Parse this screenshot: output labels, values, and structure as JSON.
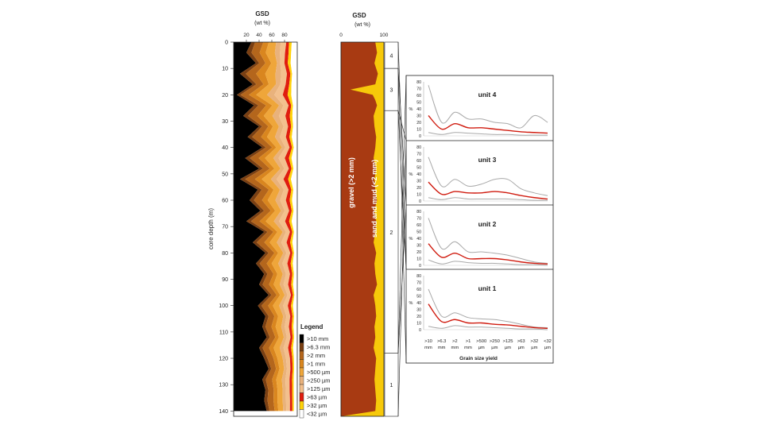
{
  "chart_data": [
    {
      "type": "area",
      "title": "GSD",
      "subtitle": "(wt %)",
      "ylabel": "core depth (m)",
      "ylim": [
        0,
        142
      ],
      "y_ticks": [
        0,
        10,
        20,
        30,
        40,
        50,
        60,
        70,
        80,
        90,
        100,
        110,
        120,
        130,
        140
      ],
      "x_ticks": [
        20,
        40,
        60,
        80
      ],
      "xlim": [
        0,
        100
      ],
      "legend_title": "Legend",
      "legend_position": "bottom-right",
      "classes": [
        {
          "label": ">10 mm",
          "color": "#000000"
        },
        {
          "label": ">6.3 mm",
          "color": "#7a3f12"
        },
        {
          "label": ">2 mm",
          "color": "#b4661c"
        },
        {
          "label": ">1 mm",
          "color": "#d9861f"
        },
        {
          "label": ">500 µm",
          "color": "#efa63a"
        },
        {
          "label": ">250 µm",
          "color": "#e9b27c"
        },
        {
          "label": ">125 µm",
          "color": "#f3c08d"
        },
        {
          "label": ">63 µm",
          "color": "#e01d0f"
        },
        {
          "label": ">32 µm",
          "color": "#ffd20a"
        },
        {
          "label": "<32 µm",
          "color": "#ffffff"
        }
      ],
      "depth": [
        0,
        4,
        8,
        12,
        16,
        20,
        24,
        28,
        32,
        36,
        40,
        44,
        48,
        52,
        56,
        60,
        64,
        68,
        72,
        76,
        80,
        84,
        88,
        92,
        96,
        100,
        104,
        108,
        112,
        116,
        120,
        124,
        128,
        132,
        136,
        140
      ],
      "black_fraction_pct": [
        28,
        20,
        35,
        10,
        30,
        5,
        32,
        15,
        40,
        22,
        45,
        18,
        40,
        10,
        38,
        25,
        42,
        20,
        48,
        30,
        50,
        35,
        48,
        40,
        55,
        38,
        50,
        45,
        52,
        40,
        48,
        55,
        45,
        50,
        48,
        52
      ],
      "remaining_pct": [
        [
          8,
          18,
          12,
          16,
          10,
          12,
          6,
          6,
          3,
          9
        ],
        [
          10,
          16,
          12,
          18,
          10,
          10,
          7,
          5,
          3,
          9
        ],
        [
          8,
          15,
          14,
          14,
          8,
          10,
          8,
          7,
          4,
          12
        ],
        [
          10,
          18,
          16,
          18,
          10,
          10,
          6,
          3,
          2,
          7
        ],
        [
          8,
          16,
          12,
          16,
          10,
          12,
          8,
          5,
          3,
          10
        ],
        [
          6,
          14,
          12,
          18,
          12,
          14,
          8,
          6,
          4,
          6
        ],
        [
          10,
          18,
          14,
          16,
          10,
          12,
          6,
          4,
          2,
          8
        ],
        [
          9,
          17,
          12,
          16,
          12,
          12,
          8,
          5,
          3,
          6
        ],
        [
          8,
          16,
          12,
          16,
          12,
          12,
          8,
          5,
          3,
          8
        ],
        [
          9,
          18,
          12,
          16,
          10,
          12,
          7,
          5,
          3,
          8
        ],
        [
          10,
          18,
          12,
          16,
          10,
          12,
          7,
          5,
          3,
          7
        ],
        [
          9,
          17,
          12,
          16,
          10,
          12,
          8,
          5,
          3,
          8
        ],
        [
          10,
          18,
          12,
          16,
          10,
          12,
          7,
          5,
          3,
          7
        ],
        [
          9,
          17,
          12,
          16,
          10,
          12,
          8,
          5,
          3,
          8
        ],
        [
          10,
          18,
          12,
          16,
          10,
          12,
          7,
          5,
          3,
          7
        ],
        [
          9,
          17,
          12,
          16,
          10,
          12,
          8,
          5,
          3,
          8
        ],
        [
          10,
          18,
          12,
          16,
          10,
          12,
          7,
          5,
          3,
          7
        ],
        [
          9,
          17,
          12,
          16,
          10,
          12,
          8,
          5,
          3,
          8
        ],
        [
          10,
          18,
          12,
          16,
          10,
          12,
          7,
          5,
          3,
          7
        ],
        [
          9,
          17,
          12,
          16,
          10,
          12,
          8,
          5,
          3,
          8
        ],
        [
          10,
          18,
          12,
          16,
          10,
          12,
          7,
          5,
          3,
          7
        ],
        [
          9,
          17,
          12,
          16,
          10,
          12,
          8,
          5,
          3,
          8
        ],
        [
          10,
          18,
          12,
          16,
          10,
          12,
          7,
          5,
          3,
          7
        ],
        [
          9,
          17,
          12,
          16,
          10,
          12,
          8,
          5,
          3,
          8
        ],
        [
          10,
          18,
          12,
          16,
          10,
          12,
          7,
          5,
          3,
          7
        ],
        [
          9,
          17,
          12,
          16,
          10,
          12,
          8,
          5,
          3,
          8
        ],
        [
          10,
          18,
          12,
          16,
          10,
          12,
          7,
          5,
          3,
          7
        ],
        [
          9,
          17,
          12,
          16,
          10,
          12,
          8,
          5,
          3,
          8
        ],
        [
          10,
          18,
          12,
          16,
          10,
          12,
          7,
          5,
          3,
          7
        ],
        [
          9,
          17,
          12,
          16,
          10,
          12,
          8,
          5,
          3,
          8
        ],
        [
          10,
          18,
          12,
          16,
          10,
          12,
          7,
          5,
          3,
          7
        ],
        [
          9,
          17,
          12,
          16,
          10,
          12,
          8,
          5,
          3,
          8
        ],
        [
          10,
          18,
          12,
          16,
          10,
          12,
          7,
          5,
          3,
          7
        ],
        [
          9,
          17,
          12,
          16,
          10,
          12,
          8,
          5,
          3,
          8
        ],
        [
          10,
          18,
          12,
          16,
          10,
          12,
          7,
          5,
          3,
          7
        ],
        [
          9,
          17,
          12,
          16,
          10,
          12,
          8,
          5,
          3,
          8
        ]
      ]
    },
    {
      "type": "area",
      "title": "GSD",
      "subtitle": "(wt %)",
      "x_ticks": [
        0,
        100
      ],
      "xlim": [
        0,
        100
      ],
      "ylim": [
        0,
        142
      ],
      "series": [
        {
          "name": "gravel (>2 mm)",
          "color": "#a83a12"
        },
        {
          "name": "sand and mud (<2 mm)",
          "color": "#f7c90a"
        }
      ],
      "depth": [
        0,
        4,
        8,
        12,
        16,
        18,
        20,
        22,
        24,
        28,
        32,
        36,
        40,
        44,
        48,
        52,
        56,
        60,
        64,
        68,
        72,
        76,
        80,
        84,
        88,
        92,
        96,
        100,
        104,
        108,
        112,
        116,
        120,
        124,
        128,
        132,
        136,
        140
      ],
      "gravel_pct": [
        80,
        84,
        78,
        86,
        80,
        22,
        74,
        80,
        84,
        76,
        78,
        82,
        80,
        76,
        82,
        78,
        80,
        84,
        78,
        82,
        80,
        76,
        82,
        78,
        80,
        84,
        76,
        80,
        82,
        78,
        80,
        76,
        82,
        80,
        78,
        80,
        82,
        80
      ],
      "units": [
        {
          "label": "4",
          "top": 0,
          "bottom": 10
        },
        {
          "label": "3",
          "top": 10,
          "bottom": 26
        },
        {
          "label": "2",
          "top": 26,
          "bottom": 118
        },
        {
          "label": "1",
          "top": 118,
          "bottom": 142
        }
      ]
    },
    {
      "type": "line",
      "xlabel": "Grain size yield",
      "ylabel": "%",
      "categories": [
        ">10\nmm",
        ">6.3\nmm",
        ">2\nmm",
        ">1\nmm",
        ">500\nµm",
        ">250\nµm",
        ">125\nµm",
        ">63\nµm",
        ">32\nµm",
        "<32\nµm"
      ],
      "ylim": [
        0,
        80
      ],
      "y_ticks": [
        0,
        10,
        20,
        30,
        40,
        50,
        60,
        70,
        80
      ],
      "panels": [
        {
          "title": "unit 4",
          "mean": [
            30,
            10,
            18,
            12,
            12,
            10,
            8,
            6,
            5,
            4
          ],
          "max": [
            75,
            20,
            35,
            25,
            25,
            20,
            18,
            12,
            30,
            20
          ],
          "min": [
            5,
            2,
            5,
            4,
            3,
            2,
            2,
            1,
            1,
            1
          ]
        },
        {
          "title": "unit 3",
          "mean": [
            28,
            10,
            14,
            12,
            12,
            14,
            12,
            8,
            5,
            3
          ],
          "max": [
            65,
            22,
            32,
            22,
            25,
            32,
            32,
            18,
            12,
            8
          ],
          "min": [
            5,
            2,
            5,
            3,
            3,
            3,
            3,
            2,
            1,
            1
          ]
        },
        {
          "title": "unit 2",
          "mean": [
            32,
            12,
            18,
            10,
            10,
            10,
            8,
            5,
            3,
            2
          ],
          "max": [
            70,
            25,
            35,
            20,
            20,
            18,
            15,
            10,
            5,
            3
          ],
          "min": [
            8,
            2,
            6,
            4,
            3,
            3,
            2,
            1,
            1,
            0
          ]
        },
        {
          "title": "unit 1",
          "mean": [
            38,
            12,
            15,
            10,
            10,
            8,
            7,
            5,
            3,
            2
          ],
          "max": [
            60,
            20,
            25,
            18,
            16,
            15,
            12,
            8,
            4,
            3
          ],
          "min": [
            5,
            2,
            6,
            4,
            4,
            3,
            2,
            1,
            1,
            0
          ]
        }
      ]
    }
  ]
}
